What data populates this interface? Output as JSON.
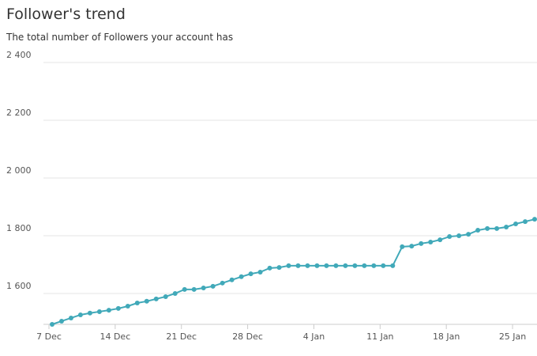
{
  "chart_data": {
    "type": "line",
    "title": "Follower's trend",
    "subtitle": "The total number of Followers your account has",
    "categories": [
      "7 Dec",
      null,
      null,
      null,
      null,
      null,
      null,
      "14 Dec",
      null,
      null,
      null,
      null,
      null,
      null,
      "21 Dec",
      null,
      null,
      null,
      null,
      null,
      null,
      "28 Dec",
      null,
      null,
      null,
      null,
      null,
      null,
      "4 Jan",
      null,
      null,
      null,
      null,
      null,
      null,
      "11 Jan",
      null,
      null,
      null,
      null,
      null,
      null,
      "18 Jan",
      null,
      null,
      null,
      null,
      null,
      null,
      "25 Jan",
      null,
      null
    ],
    "series": [
      {
        "name": "Followers",
        "color": "#41a9b9",
        "values": [
          1493,
          1504,
          1515,
          1526,
          1532,
          1537,
          1542,
          1548,
          1556,
          1567,
          1573,
          1581,
          1589,
          1600,
          1614,
          1614,
          1619,
          1625,
          1636,
          1647,
          1658,
          1668,
          1674,
          1688,
          1690,
          1696,
          1696,
          1696,
          1696,
          1696,
          1696,
          1696,
          1696,
          1696,
          1696,
          1696,
          1696,
          1762,
          1764,
          1773,
          1778,
          1786,
          1797,
          1800,
          1805,
          1819,
          1825,
          1825,
          1830,
          1841,
          1849,
          1857
        ]
      }
    ],
    "ylim": [
      1493,
      2400
    ],
    "yticks": [
      {
        "value": 1600,
        "label": "1 600"
      },
      {
        "value": 1800,
        "label": "1 800"
      },
      {
        "value": 2000,
        "label": "2 000"
      },
      {
        "value": 2200,
        "label": "2 200"
      },
      {
        "value": 2400,
        "label": "2 400"
      }
    ],
    "grid": true
  }
}
